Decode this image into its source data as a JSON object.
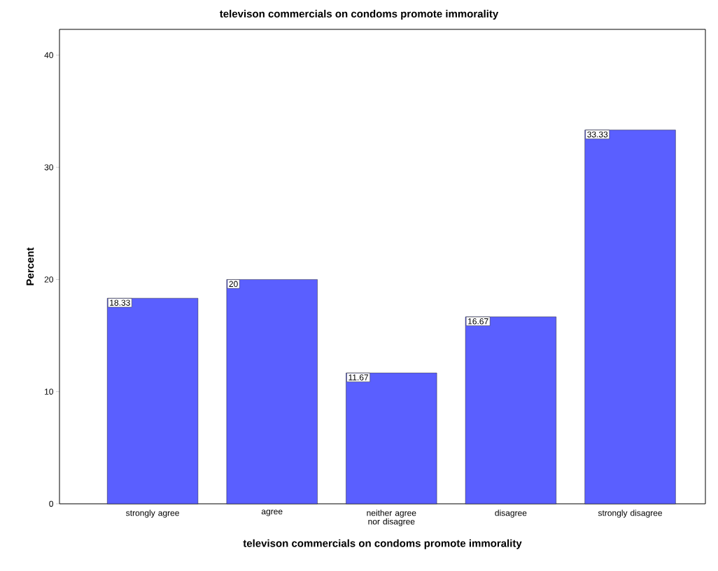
{
  "chart_data": {
    "type": "bar",
    "title": "televison commercials on condoms promote immorality",
    "xlabel": "televison commercials on condoms promote immorality",
    "ylabel": "Percent",
    "categories": [
      "strongly agree",
      "agree",
      "neither agree nor disagree",
      "disagree",
      "strongly disagree"
    ],
    "values": [
      18.33,
      20,
      11.67,
      16.67,
      33.33
    ],
    "color": "#5a5fff",
    "ylim": [
      0,
      42.3
    ],
    "yticks": [
      0,
      10,
      20,
      30,
      40
    ],
    "data_labels": true
  }
}
